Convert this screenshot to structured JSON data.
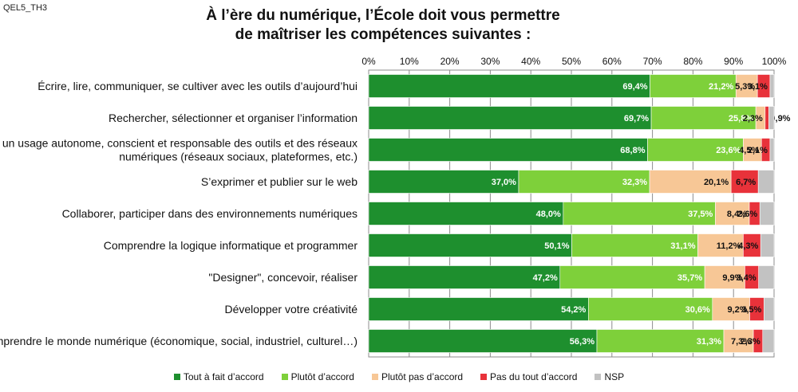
{
  "code": "QEL5_TH3",
  "title_line1": "À l’ère du numérique, l’École doit vous permettre",
  "title_line2": "de maîtriser les compétences suivantes :",
  "colors": {
    "tout_a_fait": "#1e8f2e",
    "plutot": "#7ed03a",
    "plutot_pas": "#f7c796",
    "pas_du_tout": "#e8323a",
    "nsp": "#c2c2c2"
  },
  "chart_data": {
    "type": "bar",
    "orientation": "horizontal",
    "stacked": true,
    "x_ticks": [
      "0%",
      "10%",
      "20%",
      "30%",
      "40%",
      "50%",
      "60%",
      "70%",
      "80%",
      "90%",
      "100%"
    ],
    "xlim": [
      0,
      100
    ],
    "grid": true,
    "legend_position": "bottom",
    "categories": [
      [
        "Écrire, lire, communiquer, se cultiver avec les outils d’aujourd’hui"
      ],
      [
        "Rechercher, sélectionner et organiser l’information"
      ],
      [
        "Avoir un usage autonome, conscient et responsable des outils et des réseaux",
        "numériques (réseaux sociaux, plateformes, etc.)"
      ],
      [
        "S’exprimer et publier sur le web"
      ],
      [
        "Collaborer, participer dans des environnements numériques"
      ],
      [
        "Comprendre la logique informatique et programmer"
      ],
      [
        "\"Designer\", concevoir, réaliser"
      ],
      [
        "Développer votre créativité"
      ],
      [
        "Comprendre le monde numérique (économique, social, industriel, culturel…)"
      ]
    ],
    "series": [
      {
        "name": "Tout à fait d’accord",
        "values": [
          69.4,
          69.7,
          68.8,
          37.0,
          48.0,
          50.1,
          47.2,
          54.2,
          56.3
        ],
        "labels": [
          "69,4%",
          "69,7%",
          "68,8%",
          "37,0%",
          "48,0%",
          "50,1%",
          "47,2%",
          "54,2%",
          "56,3%"
        ]
      },
      {
        "name": "Plutôt d’accord",
        "values": [
          21.2,
          25.8,
          23.6,
          32.3,
          37.5,
          31.1,
          35.7,
          30.6,
          31.3
        ],
        "labels": [
          "21,2%",
          "25,8%",
          "23,6%",
          "32,3%",
          "37,5%",
          "31,1%",
          "35,7%",
          "30,6%",
          "31,3%"
        ]
      },
      {
        "name": "Plutôt pas d’accord",
        "values": [
          5.3,
          2.3,
          4.5,
          20.1,
          8.4,
          11.2,
          9.9,
          9.2,
          7.3
        ],
        "labels": [
          "5,3%",
          "2,3%",
          "4,5%",
          "20,1%",
          "8,4%",
          "11,2%",
          "9,9%",
          "9,2%",
          "7,3%"
        ]
      },
      {
        "name": "Pas du tout d’accord",
        "values": [
          3.1,
          0.9,
          2.1,
          6.7,
          2.6,
          4.3,
          3.4,
          3.5,
          2.3
        ],
        "labels": [
          "3,1%",
          "0,9%",
          "2,1%",
          "6,7%",
          "2,6%",
          "4,3%",
          "3,4%",
          "3,5%",
          "2,3%"
        ]
      },
      {
        "name": "NSP",
        "values": [
          1.0,
          1.3,
          1.0,
          3.9,
          3.5,
          3.3,
          3.8,
          2.5,
          2.8
        ],
        "labels": [
          "",
          "",
          "",
          "",
          "",
          "",
          "",
          "",
          ""
        ]
      }
    ]
  }
}
